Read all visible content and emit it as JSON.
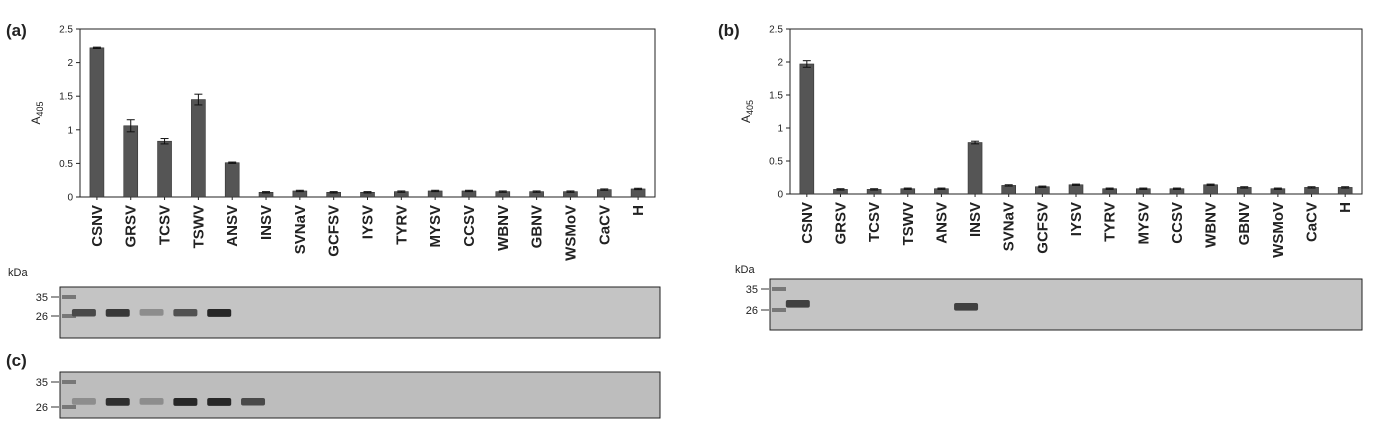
{
  "chart_data": [
    {
      "type": "bar",
      "panel_label": "(a)",
      "ylabel": {
        "text": "A",
        "subscript": "405"
      },
      "categories": [
        "CSNV",
        "GRSV",
        "TCSV",
        "TSWV",
        "ANSV",
        "INSV",
        "SVNaV",
        "GCFSV",
        "IYSV",
        "TYRV",
        "MYSV",
        "CCSV",
        "WBNV",
        "GBNV",
        "WSMoV",
        "CaCV",
        "H"
      ],
      "values": [
        2.22,
        1.06,
        0.83,
        1.45,
        0.51,
        0.07,
        0.09,
        0.07,
        0.07,
        0.08,
        0.09,
        0.09,
        0.08,
        0.08,
        0.08,
        0.11,
        0.12
      ],
      "errors": [
        0.01,
        0.09,
        0.04,
        0.08,
        0.01,
        0.01,
        0.01,
        0.01,
        0.01,
        0.01,
        0.01,
        0.01,
        0.01,
        0.01,
        0.01,
        0.01,
        0.01
      ],
      "color": "#555555",
      "ylim": [
        0,
        2.5
      ],
      "yticks": [
        0,
        0.5,
        1,
        1.5,
        2,
        2.5
      ]
    },
    {
      "type": "bar",
      "panel_label": "(b)",
      "ylabel": {
        "text": "A",
        "subscript": "405"
      },
      "categories": [
        "CSNV",
        "GRSV",
        "TCSV",
        "TSWV",
        "ANSV",
        "INSV",
        "SVNaV",
        "GCFSV",
        "IYSV",
        "TYRV",
        "MYSV",
        "CCSV",
        "WBNV",
        "GBNV",
        "WSMoV",
        "CaCV",
        "H"
      ],
      "values": [
        1.97,
        0.07,
        0.07,
        0.08,
        0.08,
        0.78,
        0.13,
        0.11,
        0.14,
        0.08,
        0.08,
        0.08,
        0.14,
        0.1,
        0.08,
        0.1,
        0.1
      ],
      "errors": [
        0.05,
        0.01,
        0.01,
        0.01,
        0.01,
        0.02,
        0.01,
        0.01,
        0.01,
        0.01,
        0.01,
        0.01,
        0.01,
        0.01,
        0.01,
        0.01,
        0.01
      ],
      "color": "#555555",
      "ylim": [
        0,
        2.5
      ],
      "yticks": [
        0,
        0.5,
        1,
        1.5,
        2,
        2.5
      ]
    }
  ],
  "blots": [
    {
      "unit": "kDa",
      "markers": [
        35,
        26
      ]
    },
    {
      "unit": "kDa",
      "markers": [
        35,
        26
      ]
    },
    {
      "panel_label": "(c)",
      "markers": [
        35,
        26
      ]
    }
  ]
}
